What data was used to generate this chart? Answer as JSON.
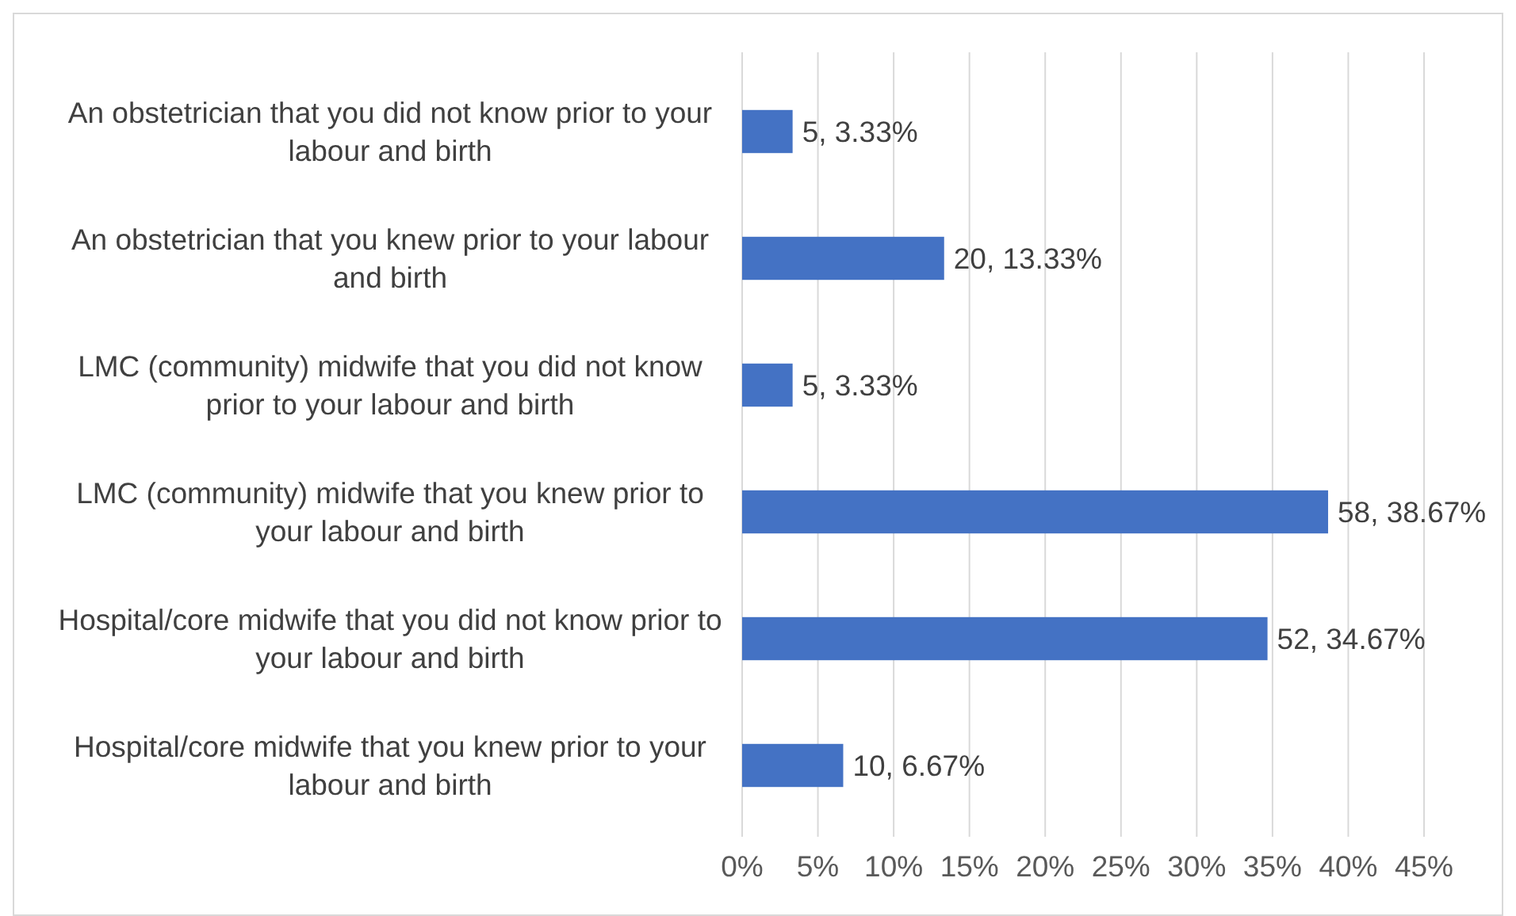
{
  "chart_data": {
    "type": "bar",
    "orientation": "horizontal",
    "categories": [
      "An obstetrician that you did not know prior to your labour and birth",
      "An obstetrician that you knew prior to your labour and birth",
      "LMC (community) midwife that you did not know prior to your labour and birth",
      "LMC (community) midwife that you knew prior to your labour and birth",
      "Hospital/core midwife that you did not know prior to your labour and birth",
      "Hospital/core midwife that you knew prior to your labour and birth"
    ],
    "values": [
      3.33,
      13.33,
      3.33,
      38.67,
      34.67,
      6.67
    ],
    "value_labels": [
      "5, 3.33%",
      "20, 13.33%",
      "5, 3.33%",
      "58, 38.67%",
      "52, 34.67%",
      "10, 6.67%"
    ],
    "color": "#4472c4",
    "xlim": [
      0,
      45
    ],
    "xticks": [
      {
        "value": 0,
        "label": "0%"
      },
      {
        "value": 5,
        "label": "5%"
      },
      {
        "value": 10,
        "label": "10%"
      },
      {
        "value": 15,
        "label": "15%"
      },
      {
        "value": 20,
        "label": "20%"
      },
      {
        "value": 25,
        "label": "25%"
      },
      {
        "value": 30,
        "label": "30%"
      },
      {
        "value": 35,
        "label": "35%"
      },
      {
        "value": 40,
        "label": "40%"
      },
      {
        "value": 45,
        "label": "45%"
      }
    ],
    "grid": "x"
  }
}
